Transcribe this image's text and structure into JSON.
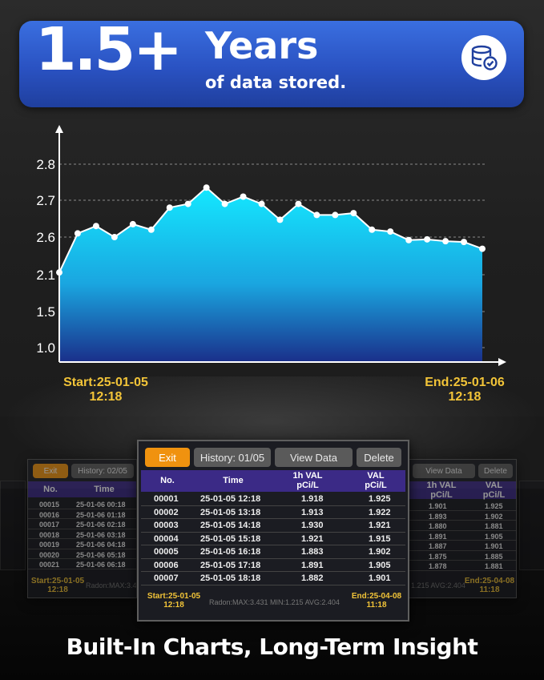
{
  "banner": {
    "number": "1.5+",
    "headline": "Years",
    "subline": "of data stored.",
    "icon": "database-check-icon"
  },
  "chart_data": {
    "type": "area",
    "ytick_labels": [
      "2.8",
      "2.7",
      "2.6",
      "2.1",
      "1.5",
      "1.0"
    ],
    "values": [
      2.13,
      2.61,
      2.63,
      2.6,
      2.635,
      2.62,
      2.68,
      2.69,
      2.735,
      2.69,
      2.71,
      2.69,
      2.647,
      2.69,
      2.66,
      2.66,
      2.665,
      2.62,
      2.615,
      2.56,
      2.57,
      2.545,
      2.535,
      2.445
    ],
    "start_label": "Start:25-01-05\n12:18",
    "start_line1": "Start:25-01-05",
    "start_line2": "12:18",
    "end_line1": "End:25-01-06",
    "end_line2": "12:18",
    "colors": {
      "top": "#14e8ff",
      "bottom": "#1a3aa0",
      "points": "#ffffff"
    }
  },
  "main_panel": {
    "exit": "Exit",
    "history": "History: 01/05",
    "view_data": "View Data",
    "delete": "Delete",
    "col_no": "No.",
    "col_time": "Time",
    "col_1h_a": "1h VAL",
    "col_1h_b": "pCi/L",
    "col_val_a": "VAL",
    "col_val_b": "pCi/L",
    "rows": [
      [
        "00001",
        "25-01-05  12:18",
        "1.918",
        "1.925"
      ],
      [
        "00002",
        "25-01-05  13:18",
        "1.913",
        "1.922"
      ],
      [
        "00003",
        "25-01-05  14:18",
        "1.930",
        "1.921"
      ],
      [
        "00004",
        "25-01-05  15:18",
        "1.921",
        "1.915"
      ],
      [
        "00005",
        "25-01-05  16:18",
        "1.883",
        "1.902"
      ],
      [
        "00006",
        "25-01-05  17:18",
        "1.891",
        "1.905"
      ],
      [
        "00007",
        "25-01-05  18:18",
        "1.882",
        "1.901"
      ]
    ],
    "start_a": "Start:25-01-05",
    "start_b": "12:18",
    "stats": "Radon:MAX:3.431  MIN:1.215  AVG:2.404",
    "end_a": "End:25-04-08",
    "end_b": "11:18"
  },
  "left_panel": {
    "exit": "Exit",
    "history": "History: 02/05",
    "col_no": "No.",
    "col_time": "Time",
    "rows": [
      [
        "00015",
        "25-01-06  00:18"
      ],
      [
        "00016",
        "25-01-06  01:18"
      ],
      [
        "00017",
        "25-01-06  02:18"
      ],
      [
        "00018",
        "25-01-06  03:18"
      ],
      [
        "00019",
        "25-01-06  04:18"
      ],
      [
        "00020",
        "25-01-06  05:18"
      ],
      [
        "00021",
        "25-01-06  06:18"
      ]
    ],
    "start_a": "Start:25-01-05",
    "start_b": "12:18",
    "stats": "Radon:MAX:3.431"
  },
  "right_panel": {
    "view_data": "View Data",
    "delete": "Delete",
    "col_1h_a": "1h VAL",
    "col_1h_b": "pCi/L",
    "col_val_a": "VAL",
    "col_val_b": "pCi/L",
    "rows": [
      [
        "1.901",
        "1.925"
      ],
      [
        "1.893",
        "1.902"
      ],
      [
        "1.880",
        "1.881"
      ],
      [
        "1.891",
        "1.905"
      ],
      [
        "1.887",
        "1.901"
      ],
      [
        "1.875",
        "1.885"
      ],
      [
        "1.878",
        "1.881"
      ]
    ],
    "stats": "1.215  AVG:2.404",
    "end_a": "End:25-04-08",
    "end_b": "11:18"
  },
  "tagline": "Built-In Charts, Long-Term Insight"
}
